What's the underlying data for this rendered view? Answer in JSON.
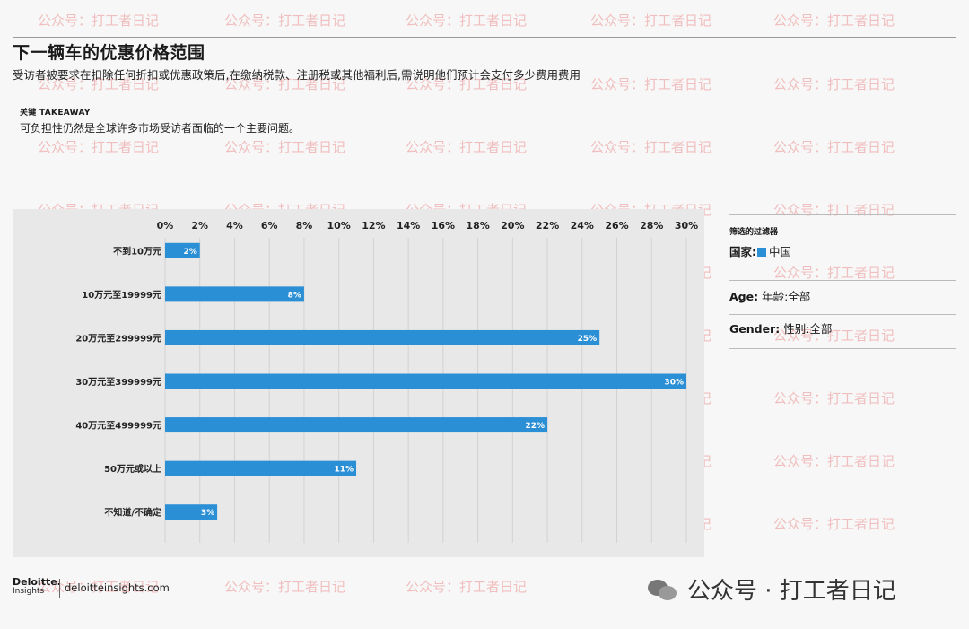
{
  "title": "下一辆车的优惠价格范围",
  "subtitle": "受访者被要求在扣除任何折扣或优惠政策后,在缴纳税款、注册税或其他福利后,需说明他们预计会支付多少费用费用",
  "takeaway": {
    "heading": "关键 TAKEAWAY",
    "text": "可负担性仍然是全球许多市场受访者面临的一个主要问题。"
  },
  "chart_data": {
    "type": "bar",
    "orientation": "horizontal",
    "categories": [
      "不到10万元",
      "10万元至19999元",
      "20万元至299999元",
      "30万元至399999元",
      "40万元至499999元",
      "50万元或以上",
      "不知道/不确定"
    ],
    "values": [
      2,
      8,
      25,
      30,
      22,
      11,
      3
    ],
    "value_labels": [
      "2%",
      "8%",
      "25%",
      "30%",
      "22%",
      "11%",
      "3%"
    ],
    "x_ticks": [
      "0%",
      "2%",
      "4%",
      "6%",
      "8%",
      "10%",
      "12%",
      "14%",
      "16%",
      "18%",
      "20%",
      "22%",
      "24%",
      "26%",
      "28%",
      "30%"
    ],
    "xlim": [
      0,
      30
    ],
    "axis_position": "top",
    "grid": true,
    "bar_color": "#2b8fd6"
  },
  "filters": {
    "heading": "筛选的过滤器",
    "country_key": "国家:",
    "country_value": "中国",
    "age_key": "Age:",
    "age_value": "年龄:全部",
    "gender_key": "Gender:",
    "gender_value": "性别:全部"
  },
  "footer": {
    "logo": "Deloitte.",
    "logo_sub": "Insights",
    "site": "deloitteinsights.com"
  },
  "watermark": {
    "text": "公众号：打工者日记",
    "badge": "公众号 · 打工者日记"
  }
}
